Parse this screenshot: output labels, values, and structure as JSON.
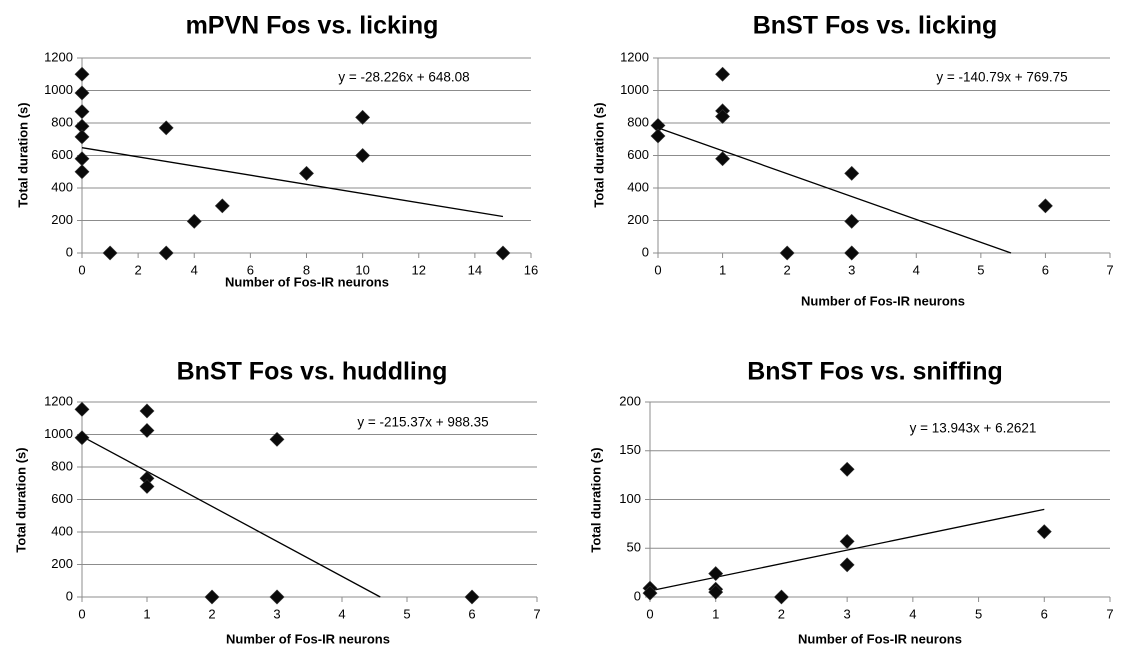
{
  "chart_data": [
    {
      "type": "scatter",
      "title": "mPVN Fos vs. licking",
      "xlabel": "Number of Fos-IR neurons",
      "ylabel": "Total duration (s)",
      "xlim": [
        0,
        16
      ],
      "ylim": [
        0,
        1200
      ],
      "x_ticks": [
        0,
        2,
        4,
        6,
        8,
        10,
        12,
        14,
        16
      ],
      "y_ticks": [
        0,
        200,
        400,
        600,
        800,
        1000,
        1200
      ],
      "grid": true,
      "points": [
        {
          "x": 0,
          "y": 1100
        },
        {
          "x": 0,
          "y": 985
        },
        {
          "x": 0,
          "y": 870
        },
        {
          "x": 0,
          "y": 780
        },
        {
          "x": 0,
          "y": 715
        },
        {
          "x": 0,
          "y": 580
        },
        {
          "x": 0,
          "y": 500
        },
        {
          "x": 1,
          "y": 0
        },
        {
          "x": 3,
          "y": 0
        },
        {
          "x": 3,
          "y": 770
        },
        {
          "x": 4,
          "y": 195
        },
        {
          "x": 5,
          "y": 290
        },
        {
          "x": 8,
          "y": 490
        },
        {
          "x": 10,
          "y": 835
        },
        {
          "x": 10,
          "y": 600
        },
        {
          "x": 15,
          "y": 0
        }
      ],
      "trendline": {
        "slope": -28.226,
        "intercept": 648.08,
        "x_range": [
          0,
          15
        ]
      },
      "equation": "y = -28.226x + 648.08"
    },
    {
      "type": "scatter",
      "title": "BnST Fos vs. licking",
      "xlabel": "Number of Fos-IR neurons",
      "ylabel": "Total duration (s)",
      "xlim": [
        0,
        7
      ],
      "ylim": [
        0,
        1200
      ],
      "x_ticks": [
        0,
        1,
        2,
        3,
        4,
        5,
        6,
        7
      ],
      "y_ticks": [
        0,
        200,
        400,
        600,
        800,
        1000,
        1200
      ],
      "grid": true,
      "points": [
        {
          "x": 0,
          "y": 785
        },
        {
          "x": 0,
          "y": 720
        },
        {
          "x": 1,
          "y": 1100
        },
        {
          "x": 1,
          "y": 875
        },
        {
          "x": 1,
          "y": 840
        },
        {
          "x": 1,
          "y": 580
        },
        {
          "x": 2,
          "y": 0
        },
        {
          "x": 3,
          "y": 490
        },
        {
          "x": 3,
          "y": 195
        },
        {
          "x": 3,
          "y": 0
        },
        {
          "x": 3,
          "y": 0
        },
        {
          "x": 6,
          "y": 290
        }
      ],
      "trendline": {
        "slope": -140.79,
        "intercept": 769.75,
        "x_range": [
          0,
          5.467
        ]
      },
      "equation": "y = -140.79x + 769.75"
    },
    {
      "type": "scatter",
      "title": "BnST Fos vs. huddling",
      "xlabel": "Number of Fos-IR neurons",
      "ylabel": "Total duration (s)",
      "xlim": [
        0,
        7
      ],
      "ylim": [
        0,
        1200
      ],
      "x_ticks": [
        0,
        1,
        2,
        3,
        4,
        5,
        6,
        7
      ],
      "y_ticks": [
        0,
        200,
        400,
        600,
        800,
        1000,
        1200
      ],
      "grid": true,
      "points": [
        {
          "x": 0,
          "y": 1155
        },
        {
          "x": 0,
          "y": 980
        },
        {
          "x": 1,
          "y": 1145
        },
        {
          "x": 1,
          "y": 1025
        },
        {
          "x": 1,
          "y": 730
        },
        {
          "x": 1,
          "y": 680
        },
        {
          "x": 2,
          "y": 0
        },
        {
          "x": 3,
          "y": 970
        },
        {
          "x": 3,
          "y": 0
        },
        {
          "x": 3,
          "y": 0
        },
        {
          "x": 6,
          "y": 0
        }
      ],
      "trendline": {
        "slope": -215.37,
        "intercept": 988.35,
        "x_range": [
          0,
          4.589
        ]
      },
      "equation": "y = -215.37x + 988.35"
    },
    {
      "type": "scatter",
      "title": "BnST Fos vs. sniffing",
      "xlabel": "Number of Fos-IR neurons",
      "ylabel": "Total duration (s)",
      "xlim": [
        0,
        7
      ],
      "ylim": [
        0,
        200
      ],
      "x_ticks": [
        0,
        1,
        2,
        3,
        4,
        5,
        6,
        7
      ],
      "y_ticks": [
        0,
        50,
        100,
        150,
        200
      ],
      "grid": true,
      "points": [
        {
          "x": 0,
          "y": 9
        },
        {
          "x": 0,
          "y": 4
        },
        {
          "x": 1,
          "y": 24
        },
        {
          "x": 1,
          "y": 8
        },
        {
          "x": 1,
          "y": 5
        },
        {
          "x": 2,
          "y": 0
        },
        {
          "x": 3,
          "y": 131
        },
        {
          "x": 3,
          "y": 57
        },
        {
          "x": 3,
          "y": 33
        },
        {
          "x": 6,
          "y": 67
        }
      ],
      "trendline": {
        "slope": 13.943,
        "intercept": 6.2621,
        "x_range": [
          0,
          6
        ]
      },
      "equation": "y = 13.943x + 6.2621"
    }
  ]
}
